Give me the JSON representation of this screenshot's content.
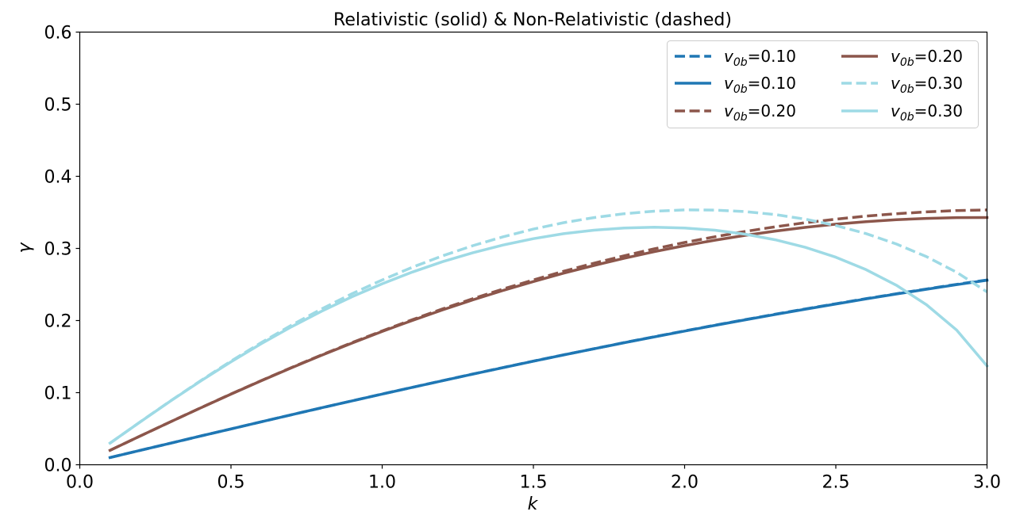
{
  "chart_data": {
    "type": "line",
    "title": "Relativistic (solid) & Non-Relativistic (dashed)",
    "xlabel": "k",
    "ylabel": "γ",
    "xlim": [
      0.0,
      3.0
    ],
    "ylim": [
      0.0,
      0.6
    ],
    "xticks": [
      "0.0",
      "0.5",
      "1.0",
      "1.5",
      "2.0",
      "2.5",
      "3.0"
    ],
    "xtick_values": [
      0.0,
      0.5,
      1.0,
      1.5,
      2.0,
      2.5,
      3.0
    ],
    "yticks": [
      "0.0",
      "0.1",
      "0.2",
      "0.3",
      "0.4",
      "0.5",
      "0.6"
    ],
    "ytick_values": [
      0.0,
      0.1,
      0.2,
      0.3,
      0.4,
      0.5,
      0.6
    ],
    "grid": false,
    "legend_placement": "top-right",
    "legend_columns": 2,
    "x": [
      0.1,
      0.2,
      0.3,
      0.4,
      0.5,
      0.6,
      0.7,
      0.8,
      0.9,
      1.0,
      1.1,
      1.2,
      1.3,
      1.4,
      1.5,
      1.6,
      1.7,
      1.8,
      1.9,
      2.0,
      2.1,
      2.2,
      2.3,
      2.4,
      2.5,
      2.6,
      2.7,
      2.8,
      2.9,
      3.0
    ],
    "series": [
      {
        "name": "v0b=0.10",
        "label_var": "v",
        "label_sub": "0b",
        "label_val": "=0.10",
        "style": "dashed",
        "color": "#1f77b4",
        "values": [
          0.01,
          0.02,
          0.0299,
          0.0399,
          0.0497,
          0.0596,
          0.0693,
          0.079,
          0.0886,
          0.0981,
          0.1074,
          0.1167,
          0.1258,
          0.1348,
          0.1437,
          0.1524,
          0.1609,
          0.1693,
          0.1776,
          0.1856,
          0.1935,
          0.2012,
          0.2088,
          0.2161,
          0.2233,
          0.2303,
          0.2371,
          0.2437,
          0.2502,
          0.2563
        ]
      },
      {
        "name": "v0b=0.10",
        "label_var": "v",
        "label_sub": "0b",
        "label_val": "=0.10",
        "style": "solid",
        "color": "#1f77b4",
        "values": [
          0.01,
          0.02,
          0.0299,
          0.0399,
          0.0497,
          0.0596,
          0.0693,
          0.079,
          0.0886,
          0.098,
          0.1074,
          0.1166,
          0.1257,
          0.1347,
          0.1436,
          0.1523,
          0.1608,
          0.1692,
          0.1774,
          0.1854,
          0.1933,
          0.201,
          0.2085,
          0.2158,
          0.223,
          0.23,
          0.2368,
          0.2434,
          0.2498,
          0.2559
        ]
      },
      {
        "name": "v0b=0.20",
        "label_var": "v",
        "label_sub": "0b",
        "label_val": "=0.20",
        "style": "dashed",
        "color": "#8c564b",
        "values": [
          0.02,
          0.0399,
          0.0596,
          0.079,
          0.0981,
          0.1167,
          0.1348,
          0.1524,
          0.1693,
          0.1856,
          0.2012,
          0.2161,
          0.2303,
          0.2437,
          0.2563,
          0.2683,
          0.2794,
          0.2898,
          0.2994,
          0.3082,
          0.3162,
          0.3235,
          0.33,
          0.3357,
          0.3406,
          0.3448,
          0.3481,
          0.3507,
          0.3525,
          0.3534
        ]
      },
      {
        "name": "v0b=0.20",
        "label_var": "v",
        "label_sub": "0b",
        "label_val": "=0.20",
        "style": "solid",
        "color": "#8c564b",
        "values": [
          0.02,
          0.0399,
          0.0596,
          0.0789,
          0.0979,
          0.1165,
          0.1345,
          0.1519,
          0.1687,
          0.1848,
          0.2002,
          0.2148,
          0.2287,
          0.2418,
          0.2541,
          0.2657,
          0.2764,
          0.2864,
          0.2955,
          0.3038,
          0.3114,
          0.3181,
          0.3241,
          0.3292,
          0.3336,
          0.3371,
          0.3398,
          0.3416,
          0.3427,
          0.3429
        ]
      },
      {
        "name": "v0b=0.30",
        "label_var": "v",
        "label_sub": "0b",
        "label_val": "=0.30",
        "style": "dashed",
        "color": "#9edae5",
        "values": [
          0.0299,
          0.0596,
          0.0886,
          0.1167,
          0.1437,
          0.1693,
          0.1935,
          0.2161,
          0.2371,
          0.2563,
          0.274,
          0.2898,
          0.3039,
          0.3162,
          0.3268,
          0.3357,
          0.3428,
          0.3481,
          0.3517,
          0.3534,
          0.3532,
          0.3511,
          0.3469,
          0.3405,
          0.3318,
          0.3205,
          0.3062,
          0.2886,
          0.2668,
          0.2397
        ]
      },
      {
        "name": "v0b=0.30",
        "label_var": "v",
        "label_sub": "0b",
        "label_val": "=0.30",
        "style": "solid",
        "color": "#9edae5",
        "values": [
          0.03,
          0.0595,
          0.0884,
          0.1162,
          0.1428,
          0.1679,
          0.1913,
          0.213,
          0.233,
          0.251,
          0.2673,
          0.2816,
          0.2941,
          0.3047,
          0.3135,
          0.3204,
          0.3253,
          0.3284,
          0.3294,
          0.3284,
          0.3253,
          0.3198,
          0.312,
          0.3014,
          0.2878,
          0.2706,
          0.249,
          0.2219,
          0.1866,
          0.137
        ]
      }
    ]
  }
}
